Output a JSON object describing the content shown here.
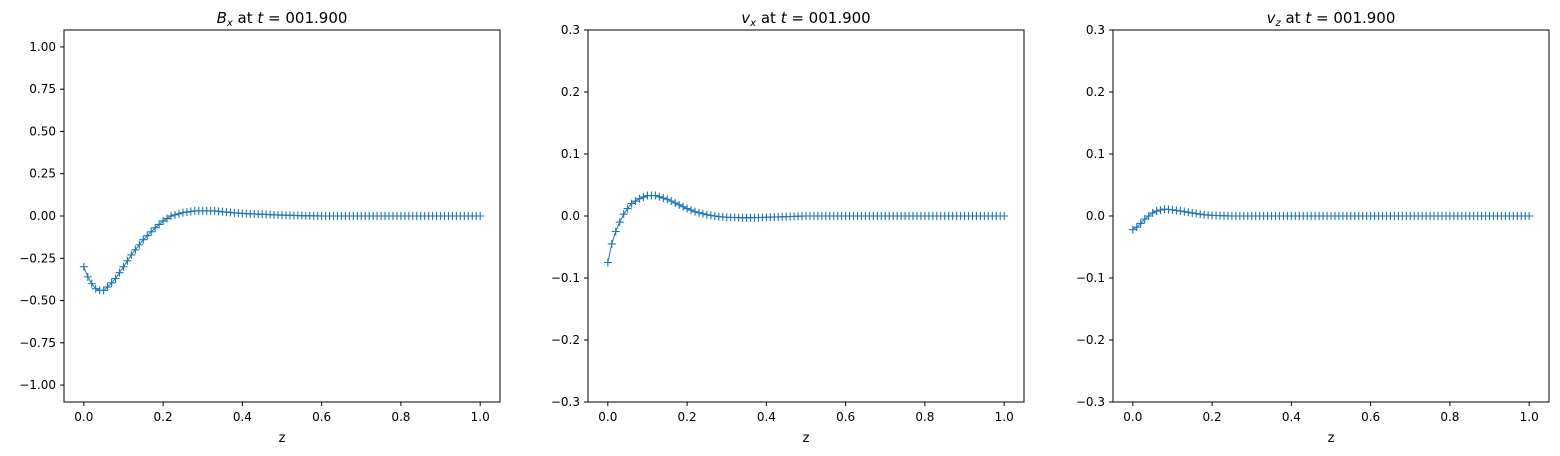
{
  "colors": {
    "series": "#1f77b4",
    "axis": "#000000",
    "background": "#ffffff"
  },
  "chart_data": [
    {
      "type": "scatter",
      "marker": "plus",
      "title_sym": "B",
      "title_sub": "x",
      "title_rest": "at",
      "title_t_sym": "t",
      "title_t_val": "= 001.900",
      "xlabel": "z",
      "ylabel": "",
      "xlim": [
        -0.05,
        1.05
      ],
      "ylim": [
        -1.1,
        1.1
      ],
      "xticks": [
        0.0,
        0.2,
        0.4,
        0.6,
        0.8,
        1.0
      ],
      "xtick_labels": [
        "0.0",
        "0.2",
        "0.4",
        "0.6",
        "0.8",
        "1.0"
      ],
      "yticks": [
        -1.0,
        -0.75,
        -0.5,
        -0.25,
        0.0,
        0.25,
        0.5,
        0.75,
        1.0
      ],
      "ytick_labels": [
        "−1.00",
        "−0.75",
        "−0.50",
        "−0.25",
        "0.00",
        "0.25",
        "0.50",
        "0.75",
        "1.00"
      ],
      "grid": false,
      "x": [
        0.0,
        0.01,
        0.02,
        0.03,
        0.04,
        0.05,
        0.06,
        0.08,
        0.1,
        0.12,
        0.15,
        0.18,
        0.2,
        0.22,
        0.25,
        0.28,
        0.3,
        0.33,
        0.35,
        0.4,
        0.45,
        0.5,
        0.55,
        0.6,
        0.7,
        0.8,
        0.9,
        1.0
      ],
      "y": [
        -0.3,
        -0.36,
        -0.4,
        -0.43,
        -0.44,
        -0.44,
        -0.42,
        -0.37,
        -0.3,
        -0.23,
        -0.14,
        -0.07,
        -0.03,
        0.0,
        0.02,
        0.03,
        0.03,
        0.03,
        0.025,
        0.015,
        0.01,
        0.005,
        0.002,
        0.0,
        0.0,
        0.0,
        0.0,
        0.0
      ]
    },
    {
      "type": "scatter",
      "marker": "plus",
      "title_sym": "v",
      "title_sub": "x",
      "title_rest": "at",
      "title_t_sym": "t",
      "title_t_val": "= 001.900",
      "xlabel": "z",
      "ylabel": "",
      "xlim": [
        -0.05,
        1.05
      ],
      "ylim": [
        -0.3,
        0.3
      ],
      "xticks": [
        0.0,
        0.2,
        0.4,
        0.6,
        0.8,
        1.0
      ],
      "xtick_labels": [
        "0.0",
        "0.2",
        "0.4",
        "0.6",
        "0.8",
        "1.0"
      ],
      "yticks": [
        -0.3,
        -0.2,
        -0.1,
        0.0,
        0.1,
        0.2,
        0.3
      ],
      "ytick_labels": [
        "−0.3",
        "−0.2",
        "−0.1",
        "0.0",
        "0.1",
        "0.2",
        "0.3"
      ],
      "grid": false,
      "x": [
        0.0,
        0.005,
        0.01,
        0.02,
        0.03,
        0.04,
        0.05,
        0.06,
        0.08,
        0.1,
        0.12,
        0.15,
        0.18,
        0.2,
        0.22,
        0.25,
        0.28,
        0.3,
        0.35,
        0.4,
        0.45,
        0.5,
        0.6,
        0.7,
        0.8,
        0.9,
        1.0
      ],
      "y": [
        -0.075,
        -0.06,
        -0.045,
        -0.025,
        -0.01,
        0.003,
        0.012,
        0.02,
        0.028,
        0.033,
        0.033,
        0.027,
        0.018,
        0.012,
        0.007,
        0.002,
        -0.001,
        -0.002,
        -0.003,
        -0.002,
        -0.001,
        0.0,
        0.0,
        0.0,
        0.0,
        0.0,
        0.0
      ]
    },
    {
      "type": "scatter",
      "marker": "plus",
      "title_sym": "v",
      "title_sub": "z",
      "title_rest": "at",
      "title_t_sym": "t",
      "title_t_val": "= 001.900",
      "xlabel": "z",
      "ylabel": "",
      "xlim": [
        -0.05,
        1.05
      ],
      "ylim": [
        -0.3,
        0.3
      ],
      "xticks": [
        0.0,
        0.2,
        0.4,
        0.6,
        0.8,
        1.0
      ],
      "xtick_labels": [
        "0.0",
        "0.2",
        "0.4",
        "0.6",
        "0.8",
        "1.0"
      ],
      "yticks": [
        -0.3,
        -0.2,
        -0.1,
        0.0,
        0.1,
        0.2,
        0.3
      ],
      "ytick_labels": [
        "−0.3",
        "−0.2",
        "−0.1",
        "0.0",
        "0.1",
        "0.2",
        "0.3"
      ],
      "grid": false,
      "x": [
        0.0,
        0.01,
        0.02,
        0.03,
        0.04,
        0.05,
        0.06,
        0.08,
        0.1,
        0.12,
        0.15,
        0.18,
        0.2,
        0.25,
        0.3,
        0.4,
        0.5,
        0.6,
        0.7,
        0.8,
        0.9,
        1.0
      ],
      "y": [
        -0.022,
        -0.018,
        -0.012,
        -0.005,
        0.0,
        0.005,
        0.008,
        0.011,
        0.01,
        0.008,
        0.005,
        0.002,
        0.001,
        0.0,
        0.0,
        0.0,
        0.0,
        0.0,
        0.0,
        0.0,
        0.0,
        0.0
      ]
    }
  ]
}
